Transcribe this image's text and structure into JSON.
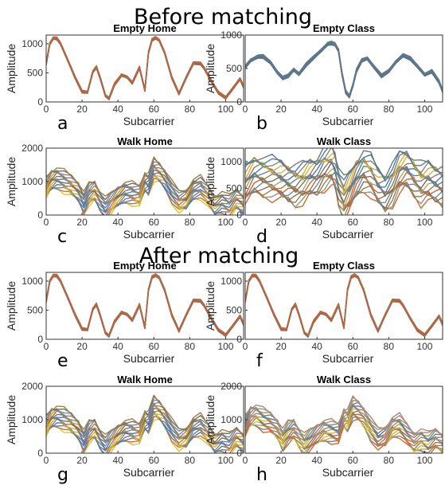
{
  "sections": [
    {
      "title": "Before matching",
      "panel_start": 0
    },
    {
      "title": "After matching",
      "panel_start": 4
    }
  ],
  "chart_data": [
    {
      "type": "line",
      "letter": "a",
      "title": "Empty Home",
      "xlabel": "Subcarrier",
      "ylabel": "Amplitude",
      "xlim": [
        0,
        110
      ],
      "ylim": [
        0,
        1150
      ],
      "xticks": [
        0,
        20,
        40,
        60,
        80,
        100
      ],
      "yticks": [
        0,
        500,
        1000
      ],
      "x": [
        0,
        2,
        4,
        6,
        8,
        12,
        16,
        20,
        23,
        26,
        28,
        30,
        33,
        35,
        38,
        42,
        45,
        48,
        52,
        55,
        57,
        59,
        61,
        63,
        66,
        70,
        74,
        78,
        82,
        86,
        88,
        92,
        96,
        100,
        104,
        108,
        110
      ],
      "y": [
        650,
        1000,
        1100,
        1090,
        1000,
        720,
        430,
        175,
        165,
        520,
        600,
        420,
        110,
        60,
        300,
        460,
        430,
        330,
        590,
        200,
        850,
        1070,
        1100,
        1060,
        850,
        420,
        140,
        420,
        670,
        660,
        580,
        360,
        160,
        70,
        230,
        400,
        260
      ],
      "band": 40,
      "palette": [
        "#8a6a52",
        "#d9642a",
        "#b66a4a"
      ]
    },
    {
      "type": "line",
      "letter": "b",
      "title": "Empty Class",
      "xlabel": "Subcarrier",
      "ylabel": "Amplitude",
      "xlim": [
        0,
        110
      ],
      "ylim": [
        0,
        1000
      ],
      "xticks": [
        0,
        20,
        40,
        60,
        80,
        100
      ],
      "yticks": [
        0,
        500,
        1000
      ],
      "x": [
        0,
        3,
        7,
        10,
        14,
        18,
        21,
        24,
        27,
        30,
        34,
        38,
        42,
        46,
        48,
        50,
        52,
        54,
        56,
        58,
        60,
        62,
        65,
        68,
        72,
        76,
        80,
        84,
        88,
        92,
        96,
        100,
        104,
        108,
        110
      ],
      "y": [
        520,
        620,
        680,
        680,
        590,
        440,
        360,
        390,
        480,
        420,
        560,
        660,
        760,
        870,
        880,
        860,
        770,
        420,
        150,
        80,
        250,
        470,
        620,
        650,
        520,
        390,
        460,
        600,
        700,
        650,
        530,
        410,
        460,
        300,
        160
      ],
      "band": 45,
      "palette": [
        "#5a6f80",
        "#3f7fa6",
        "#6a7a8a"
      ]
    },
    {
      "type": "line",
      "letter": "c",
      "title": "Walk Home",
      "xlabel": "Subcarrier",
      "ylabel": "Amplitude",
      "xlim": [
        0,
        110
      ],
      "ylim": [
        0,
        2000
      ],
      "xticks": [
        0,
        20,
        40,
        60,
        80,
        100
      ],
      "yticks": [
        0,
        1000,
        2000
      ],
      "x": [
        0,
        3,
        6,
        10,
        14,
        18,
        21,
        24,
        27,
        30,
        33,
        36,
        40,
        44,
        48,
        52,
        55,
        57,
        60,
        63,
        66,
        70,
        74,
        78,
        82,
        86,
        90,
        94,
        98,
        102,
        106,
        110
      ],
      "y": [
        800,
        1050,
        1120,
        1000,
        870,
        700,
        380,
        620,
        700,
        450,
        200,
        330,
        550,
        700,
        640,
        550,
        1000,
        950,
        1350,
        1250,
        1100,
        700,
        380,
        450,
        800,
        830,
        550,
        300,
        400,
        250,
        450,
        320
      ],
      "band": 600,
      "palette": [
        "#e6c02a",
        "#d9642a",
        "#8a8a8a",
        "#4a7ab0",
        "#9a9a9a",
        "#7a6a5a"
      ]
    },
    {
      "type": "line",
      "letter": "d",
      "title": "Walk Class",
      "xlabel": "Subcarrier",
      "ylabel": "Amplitude",
      "xlim": [
        0,
        110
      ],
      "ylim": [
        0,
        1250
      ],
      "xticks": [
        0,
        20,
        40,
        60,
        80,
        100
      ],
      "yticks": [
        0,
        500,
        1000
      ],
      "x": [
        0,
        5,
        10,
        15,
        20,
        24,
        28,
        32,
        36,
        40,
        44,
        48,
        50,
        52,
        55,
        58,
        62,
        66,
        70,
        74,
        78,
        82,
        86,
        90,
        94,
        98,
        102,
        106,
        110
      ],
      "y": [
        550,
        750,
        730,
        680,
        640,
        600,
        560,
        580,
        680,
        740,
        860,
        920,
        840,
        560,
        300,
        420,
        700,
        830,
        730,
        520,
        430,
        560,
        780,
        850,
        720,
        580,
        620,
        580,
        550
      ],
      "band": 700,
      "palette": [
        "#d9642a",
        "#5a86b8",
        "#e6c02a",
        "#7a6a5a",
        "#9a9a9a",
        "#3f7fa6"
      ]
    },
    {
      "type": "line",
      "letter": "e",
      "title": "Empty Home",
      "xlabel": "Subcarrier",
      "ylabel": "Amplitude",
      "xlim": [
        0,
        110
      ],
      "ylim": [
        0,
        1150
      ],
      "xticks": [
        0,
        20,
        40,
        60,
        80,
        100
      ],
      "yticks": [
        0,
        500,
        1000
      ],
      "x": [
        0,
        2,
        4,
        6,
        8,
        12,
        16,
        20,
        23,
        26,
        28,
        30,
        33,
        35,
        38,
        42,
        45,
        48,
        52,
        55,
        57,
        59,
        61,
        63,
        66,
        70,
        74,
        78,
        82,
        86,
        88,
        92,
        96,
        100,
        104,
        108,
        110
      ],
      "y": [
        650,
        1000,
        1100,
        1090,
        1000,
        720,
        430,
        175,
        165,
        520,
        600,
        420,
        110,
        60,
        300,
        460,
        430,
        330,
        590,
        200,
        850,
        1070,
        1100,
        1060,
        850,
        420,
        140,
        420,
        670,
        660,
        580,
        360,
        160,
        70,
        230,
        400,
        260
      ],
      "band": 40,
      "palette": [
        "#8a6a52",
        "#d9642a",
        "#b66a4a"
      ]
    },
    {
      "type": "line",
      "letter": "f",
      "title": "Empty Class",
      "xlabel": "Subcarrier",
      "ylabel": "Amplitude",
      "xlim": [
        0,
        110
      ],
      "ylim": [
        0,
        1150
      ],
      "xticks": [
        0,
        20,
        40,
        60,
        80,
        100
      ],
      "yticks": [
        0,
        500,
        1000
      ],
      "x": [
        0,
        2,
        4,
        6,
        8,
        12,
        16,
        20,
        23,
        26,
        28,
        30,
        33,
        35,
        38,
        42,
        45,
        48,
        52,
        55,
        57,
        59,
        61,
        63,
        66,
        70,
        74,
        78,
        82,
        86,
        88,
        92,
        96,
        100,
        104,
        108,
        110
      ],
      "y": [
        650,
        1000,
        1100,
        1090,
        1000,
        720,
        430,
        175,
        165,
        520,
        600,
        420,
        110,
        60,
        300,
        460,
        430,
        330,
        590,
        200,
        850,
        1070,
        1100,
        1060,
        850,
        420,
        140,
        420,
        670,
        660,
        580,
        360,
        160,
        70,
        230,
        400,
        260
      ],
      "band": 40,
      "palette": [
        "#8a6a52",
        "#d9642a",
        "#b66a4a"
      ]
    },
    {
      "type": "line",
      "letter": "g",
      "title": "Walk Home",
      "xlabel": "Subcarrier",
      "ylabel": "Amplitude",
      "xlim": [
        0,
        110
      ],
      "ylim": [
        0,
        2000
      ],
      "xticks": [
        0,
        20,
        40,
        60,
        80,
        100
      ],
      "yticks": [
        0,
        1000,
        2000
      ],
      "x": [
        0,
        3,
        6,
        10,
        14,
        18,
        21,
        24,
        27,
        30,
        33,
        36,
        40,
        44,
        48,
        52,
        55,
        57,
        60,
        63,
        66,
        70,
        74,
        78,
        82,
        86,
        90,
        94,
        98,
        102,
        106,
        110
      ],
      "y": [
        800,
        1050,
        1120,
        1000,
        870,
        700,
        380,
        620,
        700,
        450,
        200,
        330,
        550,
        700,
        640,
        550,
        1000,
        950,
        1350,
        1250,
        1100,
        700,
        380,
        450,
        800,
        830,
        550,
        300,
        400,
        250,
        450,
        320
      ],
      "band": 600,
      "palette": [
        "#e6c02a",
        "#d9642a",
        "#8a8a8a",
        "#4a7ab0",
        "#9a9a9a",
        "#7a6a5a"
      ]
    },
    {
      "type": "line",
      "letter": "h",
      "title": "Walk Class",
      "xlabel": "Subcarrier",
      "ylabel": "Amplitude",
      "xlim": [
        0,
        110
      ],
      "ylim": [
        0,
        2000
      ],
      "xticks": [
        0,
        20,
        40,
        60,
        80,
        100
      ],
      "yticks": [
        0,
        1000,
        2000
      ],
      "x": [
        0,
        3,
        6,
        10,
        14,
        18,
        21,
        24,
        27,
        30,
        33,
        36,
        40,
        44,
        48,
        52,
        55,
        57,
        60,
        63,
        66,
        70,
        74,
        78,
        82,
        86,
        90,
        94,
        98,
        102,
        106,
        110
      ],
      "y": [
        800,
        1100,
        1150,
        1000,
        900,
        720,
        420,
        620,
        700,
        480,
        250,
        380,
        560,
        700,
        650,
        560,
        1050,
        1000,
        1330,
        1250,
        1100,
        720,
        420,
        480,
        800,
        830,
        560,
        330,
        420,
        280,
        420,
        300
      ],
      "band": 600,
      "palette": [
        "#d9642a",
        "#8a8a8a",
        "#4a7ab0",
        "#e6c02a",
        "#7a6a5a",
        "#9a9a9a"
      ]
    }
  ]
}
